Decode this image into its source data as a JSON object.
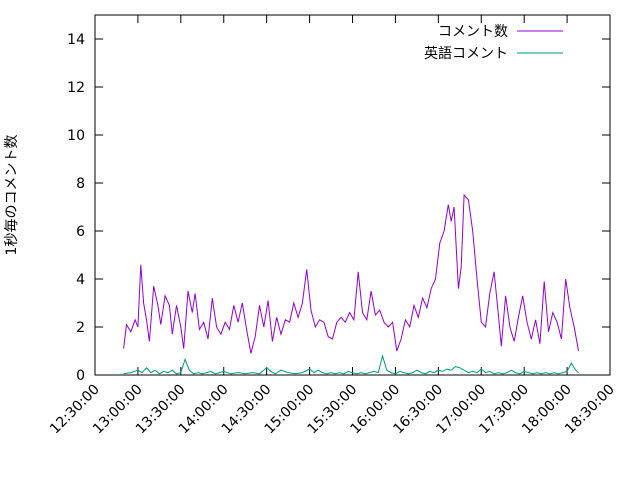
{
  "chart_data": {
    "type": "line",
    "title": "",
    "xlabel": "",
    "ylabel": "1秒毎のコメント数",
    "grid": false,
    "legend_position": "top-right-inside",
    "x_range": [
      "12:30:00",
      "18:30:00"
    ],
    "ylim": [
      0,
      15
    ],
    "y_ticks": [
      0,
      2,
      4,
      6,
      8,
      10,
      12,
      14
    ],
    "x_ticks": [
      "12:30:00",
      "13:00:00",
      "13:30:00",
      "14:00:00",
      "14:30:00",
      "15:00:00",
      "15:30:00",
      "16:00:00",
      "16:30:00",
      "17:00:00",
      "17:30:00",
      "18:00:00",
      "18:30:00"
    ],
    "series": [
      {
        "name": "コメント数",
        "color": "#9400d3",
        "points": [
          [
            "12:50",
            1.1
          ],
          [
            "12:52",
            2.1
          ],
          [
            "12:55",
            1.8
          ],
          [
            "12:58",
            2.3
          ],
          [
            "13:00",
            2.0
          ],
          [
            "13:02",
            4.6
          ],
          [
            "13:04",
            3.0
          ],
          [
            "13:06",
            2.3
          ],
          [
            "13:08",
            1.4
          ],
          [
            "13:11",
            3.7
          ],
          [
            "13:14",
            2.9
          ],
          [
            "13:16",
            2.1
          ],
          [
            "13:19",
            3.3
          ],
          [
            "13:22",
            2.9
          ],
          [
            "13:24",
            1.7
          ],
          [
            "13:27",
            2.9
          ],
          [
            "13:30",
            2.0
          ],
          [
            "13:32",
            1.1
          ],
          [
            "13:35",
            3.5
          ],
          [
            "13:38",
            2.6
          ],
          [
            "13:40",
            3.4
          ],
          [
            "13:43",
            1.9
          ],
          [
            "13:46",
            2.2
          ],
          [
            "13:49",
            1.5
          ],
          [
            "13:52",
            3.2
          ],
          [
            "13:55",
            2.0
          ],
          [
            "13:58",
            1.7
          ],
          [
            "14:01",
            2.2
          ],
          [
            "14:04",
            1.9
          ],
          [
            "14:07",
            2.9
          ],
          [
            "14:10",
            2.2
          ],
          [
            "14:13",
            3.0
          ],
          [
            "14:16",
            1.9
          ],
          [
            "14:19",
            0.9
          ],
          [
            "14:22",
            1.6
          ],
          [
            "14:25",
            2.9
          ],
          [
            "14:28",
            2.0
          ],
          [
            "14:31",
            3.1
          ],
          [
            "14:34",
            1.4
          ],
          [
            "14:37",
            2.4
          ],
          [
            "14:40",
            1.7
          ],
          [
            "14:43",
            2.3
          ],
          [
            "14:46",
            2.2
          ],
          [
            "14:49",
            3.0
          ],
          [
            "14:52",
            2.4
          ],
          [
            "14:55",
            3.0
          ],
          [
            "14:58",
            4.4
          ],
          [
            "15:01",
            2.7
          ],
          [
            "15:04",
            2.0
          ],
          [
            "15:07",
            2.3
          ],
          [
            "15:10",
            2.2
          ],
          [
            "15:13",
            1.6
          ],
          [
            "15:16",
            1.5
          ],
          [
            "15:19",
            2.2
          ],
          [
            "15:22",
            2.4
          ],
          [
            "15:25",
            2.2
          ],
          [
            "15:28",
            2.6
          ],
          [
            "15:31",
            2.3
          ],
          [
            "15:34",
            4.3
          ],
          [
            "15:37",
            2.6
          ],
          [
            "15:40",
            2.3
          ],
          [
            "15:43",
            3.5
          ],
          [
            "15:46",
            2.5
          ],
          [
            "15:49",
            2.7
          ],
          [
            "15:52",
            2.2
          ],
          [
            "15:55",
            2.0
          ],
          [
            "15:58",
            2.2
          ],
          [
            "16:01",
            1.0
          ],
          [
            "16:04",
            1.5
          ],
          [
            "16:07",
            2.3
          ],
          [
            "16:10",
            2.0
          ],
          [
            "16:13",
            2.9
          ],
          [
            "16:16",
            2.4
          ],
          [
            "16:19",
            3.2
          ],
          [
            "16:22",
            2.8
          ],
          [
            "16:25",
            3.6
          ],
          [
            "16:28",
            4.0
          ],
          [
            "16:31",
            5.5
          ],
          [
            "16:34",
            6.0
          ],
          [
            "16:37",
            7.1
          ],
          [
            "16:39",
            6.4
          ],
          [
            "16:41",
            7.0
          ],
          [
            "16:44",
            3.6
          ],
          [
            "16:46",
            4.5
          ],
          [
            "16:48",
            7.5
          ],
          [
            "16:51",
            7.3
          ],
          [
            "16:54",
            6.0
          ],
          [
            "16:57",
            4.0
          ],
          [
            "17:00",
            2.2
          ],
          [
            "17:03",
            2.0
          ],
          [
            "17:06",
            3.4
          ],
          [
            "17:09",
            4.3
          ],
          [
            "17:12",
            2.5
          ],
          [
            "17:14",
            1.2
          ],
          [
            "17:17",
            3.3
          ],
          [
            "17:20",
            2.0
          ],
          [
            "17:23",
            1.4
          ],
          [
            "17:26",
            2.4
          ],
          [
            "17:29",
            3.3
          ],
          [
            "17:32",
            2.2
          ],
          [
            "17:35",
            1.5
          ],
          [
            "17:38",
            2.3
          ],
          [
            "17:41",
            1.3
          ],
          [
            "17:44",
            3.9
          ],
          [
            "17:47",
            1.8
          ],
          [
            "17:50",
            2.6
          ],
          [
            "17:53",
            2.2
          ],
          [
            "17:56",
            1.5
          ],
          [
            "17:59",
            4.0
          ],
          [
            "18:02",
            2.8
          ],
          [
            "18:05",
            2.0
          ],
          [
            "18:08",
            1.0
          ]
        ]
      },
      {
        "name": "英語コメント",
        "color": "#009e73",
        "points": [
          [
            "12:50",
            0.05
          ],
          [
            "12:55",
            0.1
          ],
          [
            "13:00",
            0.2
          ],
          [
            "13:03",
            0.1
          ],
          [
            "13:06",
            0.3
          ],
          [
            "13:09",
            0.1
          ],
          [
            "13:12",
            0.2
          ],
          [
            "13:15",
            0.05
          ],
          [
            "13:18",
            0.15
          ],
          [
            "13:21",
            0.1
          ],
          [
            "13:24",
            0.2
          ],
          [
            "13:27",
            0.05
          ],
          [
            "13:30",
            0.1
          ],
          [
            "13:33",
            0.65
          ],
          [
            "13:36",
            0.2
          ],
          [
            "13:39",
            0.05
          ],
          [
            "13:42",
            0.1
          ],
          [
            "13:45",
            0.05
          ],
          [
            "13:48",
            0.1
          ],
          [
            "13:51",
            0.15
          ],
          [
            "13:54",
            0.05
          ],
          [
            "13:57",
            0.1
          ],
          [
            "14:00",
            0.15
          ],
          [
            "14:05",
            0.05
          ],
          [
            "14:10",
            0.1
          ],
          [
            "14:15",
            0.05
          ],
          [
            "14:20",
            0.1
          ],
          [
            "14:25",
            0.05
          ],
          [
            "14:30",
            0.3
          ],
          [
            "14:33",
            0.15
          ],
          [
            "14:36",
            0.05
          ],
          [
            "14:40",
            0.2
          ],
          [
            "14:45",
            0.1
          ],
          [
            "14:50",
            0.05
          ],
          [
            "14:55",
            0.1
          ],
          [
            "15:00",
            0.25
          ],
          [
            "15:03",
            0.1
          ],
          [
            "15:06",
            0.2
          ],
          [
            "15:09",
            0.1
          ],
          [
            "15:12",
            0.05
          ],
          [
            "15:15",
            0.1
          ],
          [
            "15:18",
            0.05
          ],
          [
            "15:21",
            0.1
          ],
          [
            "15:24",
            0.05
          ],
          [
            "15:27",
            0.15
          ],
          [
            "15:30",
            0.1
          ],
          [
            "15:33",
            0.05
          ],
          [
            "15:36",
            0.1
          ],
          [
            "15:39",
            0.05
          ],
          [
            "15:42",
            0.1
          ],
          [
            "15:45",
            0.15
          ],
          [
            "15:48",
            0.1
          ],
          [
            "15:51",
            0.8
          ],
          [
            "15:54",
            0.2
          ],
          [
            "15:57",
            0.1
          ],
          [
            "16:00",
            0.05
          ],
          [
            "16:03",
            0.15
          ],
          [
            "16:06",
            0.1
          ],
          [
            "16:09",
            0.05
          ],
          [
            "16:12",
            0.1
          ],
          [
            "16:15",
            0.2
          ],
          [
            "16:18",
            0.1
          ],
          [
            "16:21",
            0.05
          ],
          [
            "16:24",
            0.15
          ],
          [
            "16:27",
            0.1
          ],
          [
            "16:30",
            0.2
          ],
          [
            "16:33",
            0.15
          ],
          [
            "16:36",
            0.25
          ],
          [
            "16:39",
            0.2
          ],
          [
            "16:42",
            0.35
          ],
          [
            "16:45",
            0.3
          ],
          [
            "16:48",
            0.2
          ],
          [
            "16:51",
            0.1
          ],
          [
            "16:54",
            0.15
          ],
          [
            "16:57",
            0.1
          ],
          [
            "17:00",
            0.25
          ],
          [
            "17:03",
            0.1
          ],
          [
            "17:06",
            0.15
          ],
          [
            "17:09",
            0.05
          ],
          [
            "17:12",
            0.1
          ],
          [
            "17:15",
            0.05
          ],
          [
            "17:18",
            0.1
          ],
          [
            "17:21",
            0.2
          ],
          [
            "17:24",
            0.1
          ],
          [
            "17:27",
            0.05
          ],
          [
            "17:30",
            0.15
          ],
          [
            "17:33",
            0.1
          ],
          [
            "17:36",
            0.05
          ],
          [
            "17:39",
            0.1
          ],
          [
            "17:42",
            0.05
          ],
          [
            "17:45",
            0.1
          ],
          [
            "17:48",
            0.05
          ],
          [
            "17:51",
            0.1
          ],
          [
            "17:54",
            0.05
          ],
          [
            "17:57",
            0.1
          ],
          [
            "18:00",
            0.15
          ],
          [
            "18:03",
            0.5
          ],
          [
            "18:06",
            0.2
          ],
          [
            "18:08",
            0.1
          ]
        ]
      }
    ]
  }
}
